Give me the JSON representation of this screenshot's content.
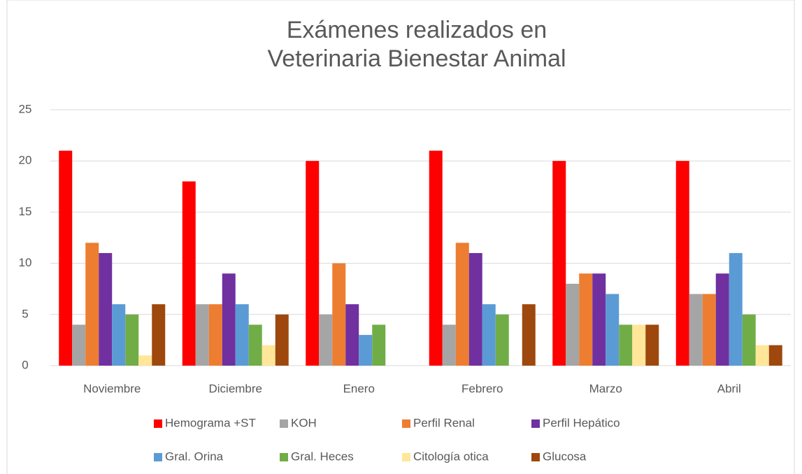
{
  "chart_data": {
    "type": "bar",
    "title": [
      "Exámenes realizados en",
      "Veterinaria Bienestar Animal"
    ],
    "categories": [
      "Noviembre",
      "Diciembre",
      "Enero",
      "Febrero",
      "Marzo",
      "Abril"
    ],
    "series": [
      {
        "name": "Hemograma +ST",
        "color": "#ff0000",
        "values": [
          21,
          18,
          20,
          21,
          20,
          20
        ]
      },
      {
        "name": "KOH",
        "color": "#a5a5a5",
        "values": [
          4,
          6,
          5,
          4,
          8,
          7
        ]
      },
      {
        "name": "Perfil Renal",
        "color": "#ed7d31",
        "values": [
          12,
          6,
          10,
          12,
          9,
          7
        ]
      },
      {
        "name": "Perfil Hepático",
        "color": "#7030a0",
        "values": [
          11,
          9,
          6,
          11,
          9,
          9
        ]
      },
      {
        "name": "Gral. Orina",
        "color": "#5b9bd5",
        "values": [
          6,
          6,
          3,
          6,
          7,
          11
        ]
      },
      {
        "name": "Gral. Heces",
        "color": "#70ad47",
        "values": [
          5,
          4,
          4,
          5,
          4,
          5
        ]
      },
      {
        "name": "Citología otica",
        "color": "#ffe699",
        "values": [
          1,
          2,
          0,
          0,
          4,
          2
        ]
      },
      {
        "name": "Glucosa",
        "color": "#9e480e",
        "values": [
          6,
          5,
          0,
          6,
          4,
          2
        ]
      }
    ],
    "ylim": [
      0,
      25
    ],
    "yticks": [
      0,
      5,
      10,
      15,
      20,
      25
    ],
    "grid": true,
    "legend": "bottom"
  }
}
